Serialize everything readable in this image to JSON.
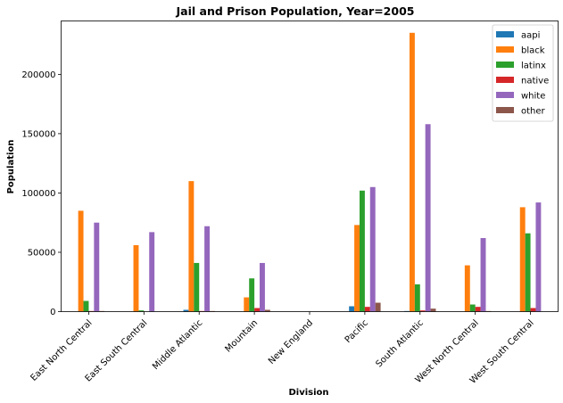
{
  "chart_data": {
    "type": "bar",
    "title": "Jail and Prison Population, Year=2005",
    "xlabel": "Division",
    "ylabel": "Population",
    "ylim": [
      0,
      245000
    ],
    "yticks": [
      0,
      50000,
      100000,
      150000,
      200000
    ],
    "ytick_labels": [
      "0",
      "50000",
      "100000",
      "150000",
      "200000"
    ],
    "grid": false,
    "legend_position": "top-right",
    "categories": [
      "East North Central",
      "East South Central",
      "Middle Atlantic",
      "Mountain",
      "New England",
      "Pacific",
      "South Atlantic",
      "West North Central",
      "West South Central"
    ],
    "series": [
      {
        "name": "aapi",
        "color": "#1f77b4",
        "values": [
          0,
          0,
          1500,
          0,
          0,
          4500,
          500,
          0,
          0
        ]
      },
      {
        "name": "black",
        "color": "#ff7f0e",
        "values": [
          85000,
          56000,
          110000,
          12000,
          0,
          73000,
          235000,
          39000,
          88000
        ]
      },
      {
        "name": "latinx",
        "color": "#2ca02c",
        "values": [
          9000,
          1000,
          41000,
          28000,
          0,
          102000,
          23000,
          6000,
          66000
        ]
      },
      {
        "name": "native",
        "color": "#d62728",
        "values": [
          500,
          0,
          500,
          3000,
          0,
          4000,
          1000,
          4000,
          3000
        ]
      },
      {
        "name": "white",
        "color": "#9467bd",
        "values": [
          75000,
          67000,
          72000,
          41000,
          0,
          105000,
          158000,
          62000,
          92000
        ]
      },
      {
        "name": "other",
        "color": "#8c564b",
        "values": [
          500,
          0,
          500,
          1500,
          0,
          7500,
          2500,
          500,
          0
        ]
      }
    ]
  }
}
